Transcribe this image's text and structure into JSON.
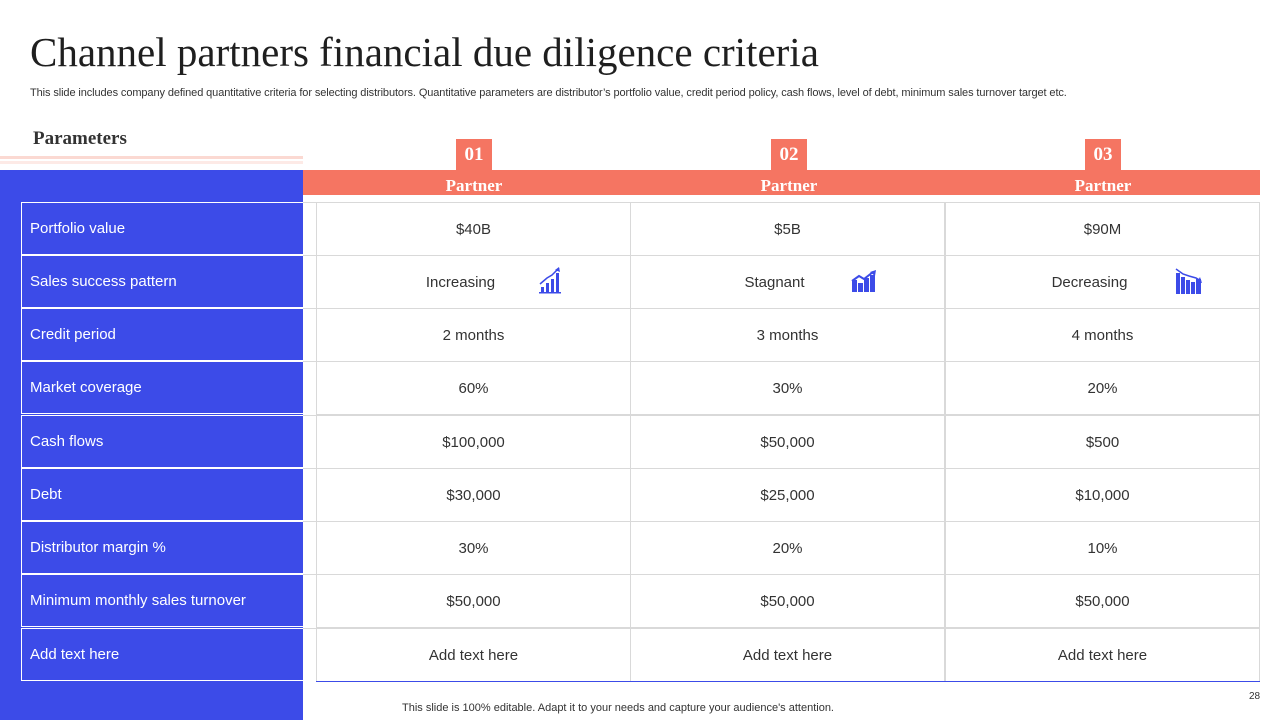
{
  "title": "Channel partners financial due diligence criteria",
  "subtitle": "This slide includes company defined quantitative criteria for selecting distributors. Quantitative parameters are distributor’s portfolio value, credit period policy, cash flows, level of debt, minimum sales turnover target etc.",
  "parameters_label": "Parameters",
  "partners": [
    {
      "number": "01",
      "label": "Partner"
    },
    {
      "number": "02",
      "label": "Partner"
    },
    {
      "number": "03",
      "label": "Partner"
    }
  ],
  "rows": [
    {
      "param": "Portfolio value",
      "values": [
        "$40B",
        "$5B",
        "$90M"
      ]
    },
    {
      "param": "Sales success pattern",
      "values": [
        "Increasing",
        "Stagnant",
        "Decreasing"
      ]
    },
    {
      "param": "Credit period",
      "values": [
        "2 months",
        "3 months",
        "4 months"
      ]
    },
    {
      "param": "Market coverage",
      "values": [
        "60%",
        "30%",
        "20%"
      ]
    },
    {
      "param": "Cash flows",
      "values": [
        "$100,000",
        "$50,000",
        "$500"
      ]
    },
    {
      "param": "Debt",
      "values": [
        "$30,000",
        "$25,000",
        "$10,000"
      ]
    },
    {
      "param": "Distributor margin %",
      "values": [
        "30%",
        "20%",
        "10%"
      ]
    },
    {
      "param": "Minimum monthly sales turnover",
      "values": [
        "$50,000",
        "$50,000",
        "$50,000"
      ]
    },
    {
      "param": "Add text here",
      "values": [
        "Add text here",
        "Add text here",
        "Add text here"
      ]
    }
  ],
  "icons": [
    "increasing-chart-icon",
    "stagnant-chart-icon",
    "decreasing-chart-icon"
  ],
  "colors": {
    "blue": "#3c4be8",
    "coral": "#f57562"
  },
  "footer": "This slide is 100% editable. Adapt it to your needs and capture your audience's attention.",
  "page_number": "28"
}
